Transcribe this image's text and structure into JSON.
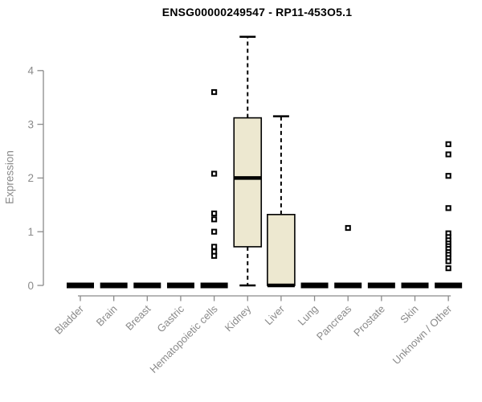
{
  "chart_data": {
    "type": "boxplot",
    "title": "ENSG00000249547 - RP11-453O5.1",
    "ylabel": "Expression",
    "xlabel": "",
    "ylim": [
      0,
      4.7
    ],
    "yticks": [
      0,
      1,
      2,
      3,
      4
    ],
    "grid": false,
    "legend": null,
    "categories": [
      "Bladder",
      "Brain",
      "Breast",
      "Gastric",
      "Hematopoietic cells",
      "Kidney",
      "Liver",
      "Lung",
      "Pancreas",
      "Prostate",
      "Skin",
      "Unknown / Other"
    ],
    "series": [
      {
        "category": "Bladder",
        "low": 0,
        "q1": 0,
        "median": 0,
        "q3": 0,
        "high": 0,
        "outliers": []
      },
      {
        "category": "Brain",
        "low": 0,
        "q1": 0,
        "median": 0,
        "q3": 0,
        "high": 0,
        "outliers": []
      },
      {
        "category": "Breast",
        "low": 0,
        "q1": 0,
        "median": 0,
        "q3": 0,
        "high": 0,
        "outliers": []
      },
      {
        "category": "Gastric",
        "low": 0,
        "q1": 0,
        "median": 0,
        "q3": 0,
        "high": 0,
        "outliers": []
      },
      {
        "category": "Hematopoietic cells",
        "low": 0,
        "q1": 0,
        "median": 0,
        "q3": 0,
        "high": 0,
        "outliers": [
          3.6,
          2.08,
          1.34,
          1.23,
          1.0,
          0.72,
          0.63,
          0.55
        ]
      },
      {
        "category": "Kidney",
        "low": 0,
        "q1": 0.72,
        "median": 2.0,
        "q3": 3.12,
        "high": 4.63,
        "outliers": []
      },
      {
        "category": "Liver",
        "low": 0,
        "q1": 0,
        "median": 0,
        "q3": 1.32,
        "high": 3.15,
        "outliers": []
      },
      {
        "category": "Lung",
        "low": 0,
        "q1": 0,
        "median": 0,
        "q3": 0,
        "high": 0,
        "outliers": []
      },
      {
        "category": "Pancreas",
        "low": 0,
        "q1": 0,
        "median": 0,
        "q3": 0,
        "high": 0,
        "outliers": [
          1.07
        ]
      },
      {
        "category": "Prostate",
        "low": 0,
        "q1": 0,
        "median": 0,
        "q3": 0,
        "high": 0,
        "outliers": []
      },
      {
        "category": "Skin",
        "low": 0,
        "q1": 0,
        "median": 0,
        "q3": 0,
        "high": 0,
        "outliers": []
      },
      {
        "category": "Unknown / Other",
        "low": 0,
        "q1": 0,
        "median": 0,
        "q3": 0,
        "high": 0,
        "outliers": [
          2.63,
          2.44,
          2.04,
          1.44,
          0.97,
          0.9,
          0.84,
          0.78,
          0.73,
          0.68,
          0.62,
          0.57,
          0.51,
          0.45,
          0.32
        ]
      }
    ],
    "colors": {
      "box_fill": "#EDE8D0",
      "box_border": "#000000",
      "median": "#000000",
      "outlier": "#000000",
      "axis": "#8a8a8a",
      "tick_label": "#8a8a8a",
      "title": "#000000",
      "background": "#FFFFFF"
    }
  }
}
